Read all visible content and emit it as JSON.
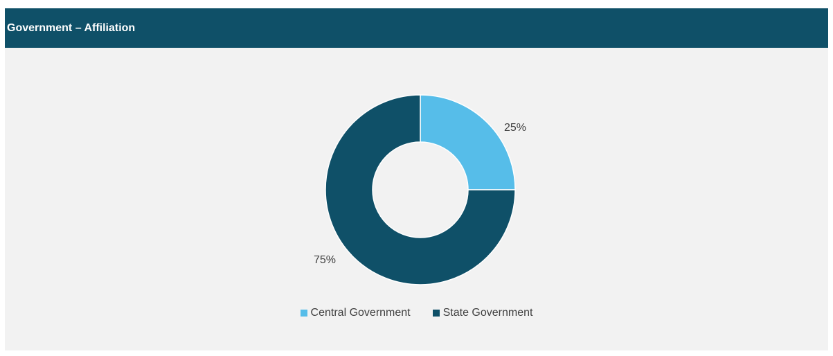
{
  "header": {
    "title": "Government – Affiliation"
  },
  "chart_data": {
    "type": "pie",
    "variant": "donut",
    "title": "",
    "categories": [
      "Central Government",
      "State Government"
    ],
    "values": [
      25,
      75
    ],
    "data_labels": [
      "25%",
      "75%"
    ],
    "colors": [
      "#56bde9",
      "#0f5068"
    ],
    "legend_position": "bottom",
    "start_angle": "top",
    "direction": "clockwise"
  },
  "legend": {
    "items": [
      {
        "label": "Central Government",
        "color": "#56bde9"
      },
      {
        "label": "State Government",
        "color": "#0f5068"
      }
    ]
  },
  "colors": {
    "header_bg": "#0f5068",
    "panel_bg": "#f2f2f2",
    "label_text": "#404040"
  }
}
